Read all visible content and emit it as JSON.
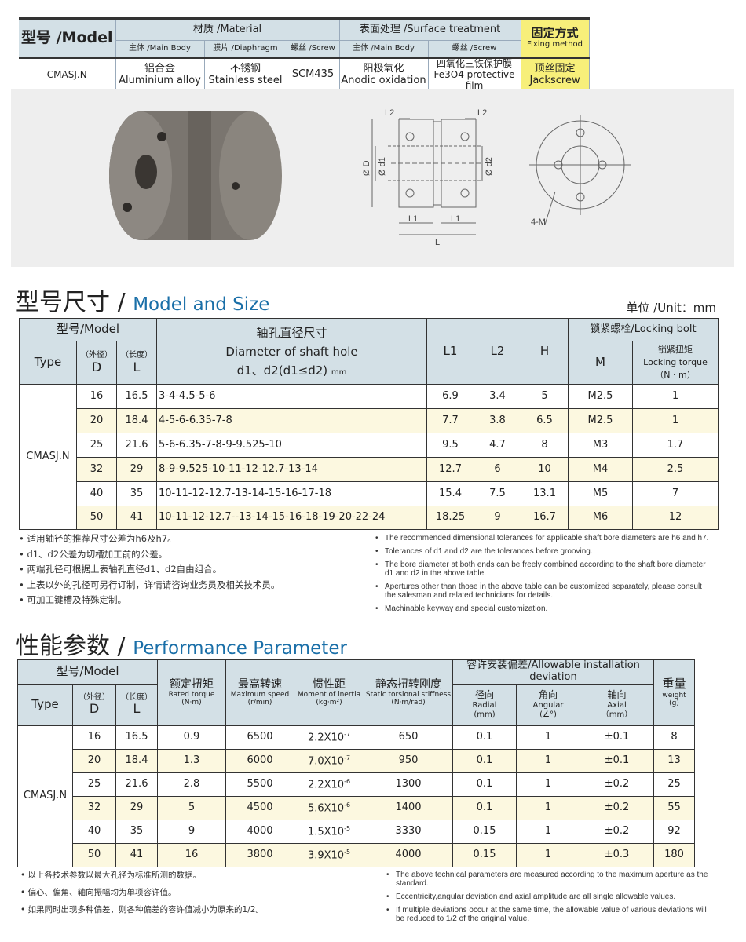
{
  "materials_table": {
    "model_label": "型号 /Model",
    "material": "材质 /Material",
    "surface": "表面处理 /Surface treatment",
    "fixing_cn": "固定方式",
    "fixing_en": "Fixing method",
    "sub": [
      "主体 /Main Body",
      "膜片 /Diaphragm",
      "螺丝 /Screw",
      "主体 /Main Body",
      "螺丝 /Screw"
    ],
    "row": {
      "model": "CMASJ.N",
      "cells": [
        [
          "铝合金",
          "Aluminium alloy"
        ],
        [
          "不锈钢",
          "Stainless steel"
        ],
        [
          "",
          "SCM435"
        ],
        [
          "阳极氧化",
          "Anodic oxidation"
        ],
        [
          "四氧化三铁保护膜",
          "Fe3O4 protective film"
        ],
        [
          "顶丝固定",
          "Jackscrew"
        ]
      ]
    }
  },
  "drawing": {
    "labels": {
      "l2": "L2",
      "l1": "L1",
      "l": "L",
      "d": "Ø D",
      "d1": "Ø d1",
      "d2": "Ø d2",
      "m": "4-M"
    }
  },
  "size_section": {
    "title_cn": "型号尺寸 /",
    "title_en": "Model and Size",
    "unit": "单位 /Unit：mm"
  },
  "size_table": {
    "model": "型号/Model",
    "type": "Type",
    "d_cn": "（外径）",
    "d": "D",
    "l_cn": "（长度）",
    "l": "L",
    "dia_cn": "轴孔直径尺寸",
    "dia_en": "Diameter of shaft hole",
    "dia_sub": "d1、d2(d1≤d2)",
    "dia_unit": "mm",
    "l1": "L1",
    "l2": "L2",
    "h": "H",
    "bolt": "锁紧螺栓/Locking bolt",
    "m": "M",
    "torque_cn": "锁紧扭矩",
    "torque_en": "Locking torque",
    "torque_unit": "（N · m）",
    "type_value": "CMASJ.N",
    "rows": [
      [
        "16",
        "16.5",
        "3-4-4.5-5-6",
        "6.9",
        "3.4",
        "5",
        "M2.5",
        "1"
      ],
      [
        "20",
        "18.4",
        "4-5-6-6.35-7-8",
        "7.7",
        "3.8",
        "6.5",
        "M2.5",
        "1"
      ],
      [
        "25",
        "21.6",
        "5-6-6.35-7-8-9-9.525-10",
        "9.5",
        "4.7",
        "8",
        "M3",
        "1.7"
      ],
      [
        "32",
        "29",
        "8-9-9.525-10-11-12-12.7-13-14",
        "12.7",
        "6",
        "10",
        "M4",
        "2.5"
      ],
      [
        "40",
        "35",
        "10-11-12-12.7-13-14-15-16-17-18",
        "15.4",
        "7.5",
        "13.1",
        "M5",
        "7"
      ],
      [
        "50",
        "41",
        "10-11-12-12.7--13-14-15-16-18-19-20-22-24",
        "18.25",
        "9",
        "16.7",
        "M6",
        "12"
      ]
    ]
  },
  "size_notes": {
    "cn": [
      "• 适用轴径的推荐尺寸公差为h6及h7。",
      "• d1、d2公差为切槽加工前的公差。",
      "• 两端孔径可根据上表轴孔直径d1、d2自由组合。",
      "• 上表以外的孔径可另行订制，详情请咨询业务员及相关技术员。",
      "• 可加工键槽及特殊定制。"
    ],
    "en": [
      "The recommended dimensional tolerances for applicable shaft bore diameters are h6 and h7.",
      "Tolerances of d1 and d2 are the tolerances before grooving.",
      "The bore diameter at both ends can be freely combined according to the shaft bore diameter d1 and d2 in the above table.",
      "Apertures other than those in the above table can be customized separately, please consult the salesman and related technicians for details.",
      "Machinable keyway and special customization."
    ]
  },
  "perf_section": {
    "title_cn": "性能参数 /",
    "title_en": "Performance Parameter"
  },
  "perf_table": {
    "model": "型号/Model",
    "type": "Type",
    "d_cn": "（外径）",
    "d": "D",
    "l_cn": "（长度）",
    "l": "L",
    "cols": [
      [
        "额定扭矩",
        "Rated torque",
        "(N·m)"
      ],
      [
        "最高转速",
        "Maximum speed",
        "(r/min)"
      ],
      [
        "惯性距",
        "Moment of inertia",
        "(kg·m²)"
      ],
      [
        "静态扭转刚度",
        "Static torsional stiffness",
        "(N·m/rad)"
      ]
    ],
    "dev": "容许安装偏差/Allowable installation deviation",
    "devcols": [
      [
        "径向",
        "Radial",
        "(mm)"
      ],
      [
        "角向",
        "Angular",
        "(∠°)"
      ],
      [
        "轴向",
        "Axial",
        "（mm）"
      ]
    ],
    "weight": [
      "重量",
      "weight",
      "(g)"
    ],
    "type_value": "CMASJ.N",
    "rows": [
      [
        "16",
        "16.5",
        "0.9",
        "6500",
        [
          "2.2X10",
          "-7"
        ],
        "650",
        "0.1",
        "1",
        "±0.1",
        "8"
      ],
      [
        "20",
        "18.4",
        "1.3",
        "6000",
        [
          "7.0X10",
          "-7"
        ],
        "950",
        "0.1",
        "1",
        "±0.1",
        "13"
      ],
      [
        "25",
        "21.6",
        "2.8",
        "5500",
        [
          "2.2X10",
          "-6"
        ],
        "1300",
        "0.1",
        "1",
        "±0.2",
        "25"
      ],
      [
        "32",
        "29",
        "5",
        "4500",
        [
          "5.6X10",
          "-6"
        ],
        "1400",
        "0.1",
        "1",
        "±0.2",
        "55"
      ],
      [
        "40",
        "35",
        "9",
        "4000",
        [
          "1.5X10",
          "-5"
        ],
        "3330",
        "0.15",
        "1",
        "±0.2",
        "92"
      ],
      [
        "50",
        "41",
        "16",
        "3800",
        [
          "3.9X10",
          "-5"
        ],
        "4000",
        "0.15",
        "1",
        "±0.3",
        "180"
      ]
    ]
  },
  "perf_notes": {
    "cn": [
      "• 以上各技术参数以最大孔径为标准所测的数据。",
      "• 偏心、偏角、轴向振幅均为单项容许值。",
      "• 如果同时出现多种偏差，则各种偏差的容许值减小为原来的1/2。"
    ],
    "en": [
      "The above technical parameters are measured according to the maximum aperture as the standard.",
      "Eccentricity,angular deviation and axial amplitude are all single allowable values.",
      "If multiple deviations occur at the same time, the allowable value of various deviations will be reduced to 1/2 of the original value."
    ]
  },
  "colors": {
    "header": "#d3e0e6",
    "highlight_row": "#fcf8e0",
    "fixing": "#f7ef7a",
    "title_blue": "#1a6fa8"
  }
}
